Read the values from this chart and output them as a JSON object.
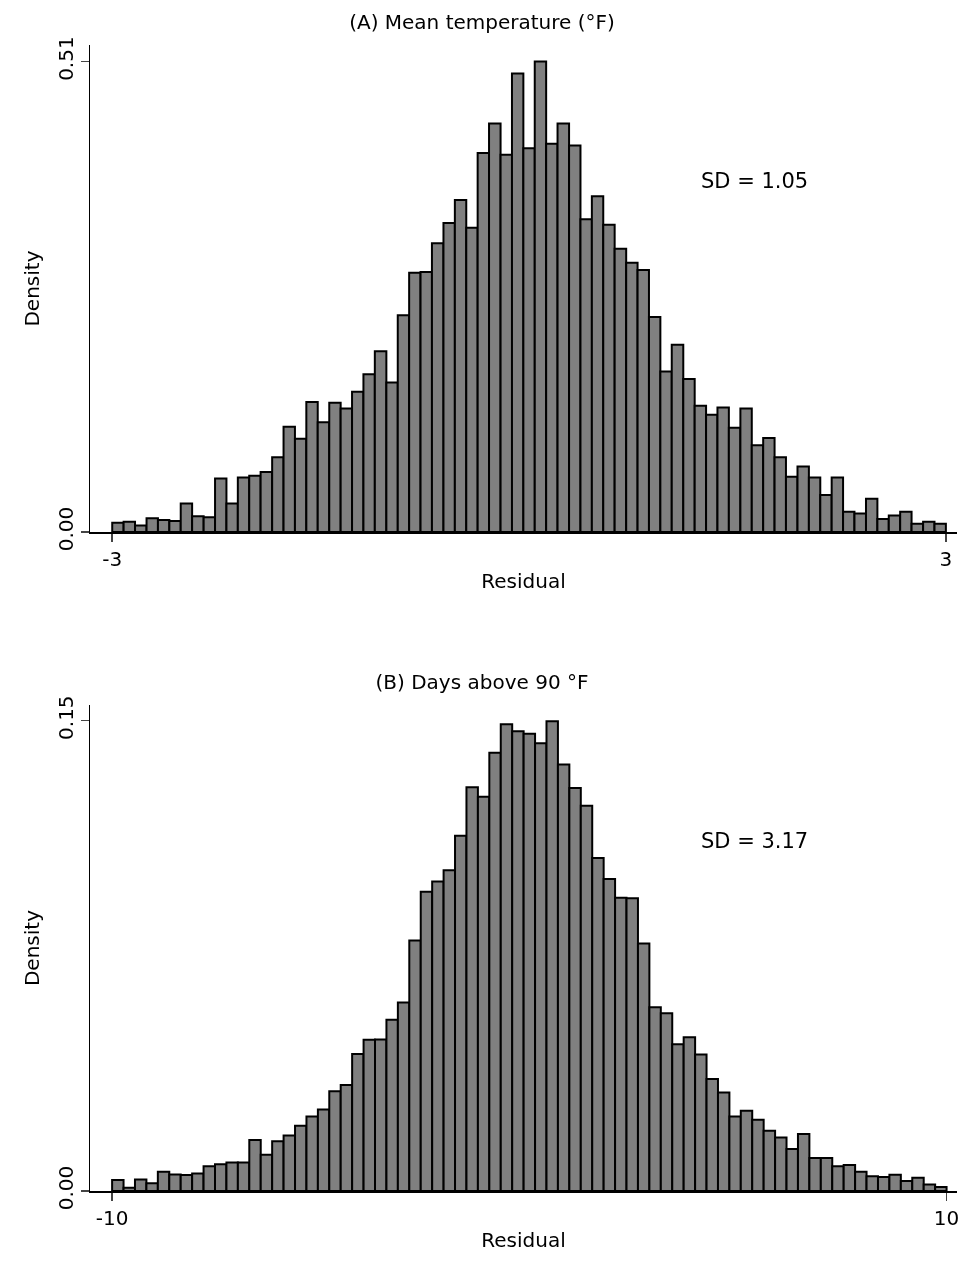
{
  "chart_data": [
    {
      "type": "histogram",
      "title": "(A) Mean temperature (°F)",
      "xlabel": "Residual",
      "ylabel": "Density",
      "color": "#808080",
      "bins": [
        -3,
        -2.918,
        -2.836,
        -2.753,
        -2.671,
        -2.589,
        -2.507,
        -2.425,
        -2.342,
        -2.26,
        -2.178,
        -2.096,
        -2.014,
        -1.932,
        -1.849,
        -1.767,
        -1.685,
        -1.603,
        -1.521,
        -1.438,
        -1.356,
        -1.274,
        -1.192,
        -1.11,
        -1.027,
        -0.945,
        -0.863,
        -0.781,
        -0.699,
        -0.616,
        -0.534,
        -0.452,
        -0.37,
        -0.288,
        -0.205,
        -0.123,
        -0.041,
        0.041,
        0.123,
        0.205,
        0.288,
        0.37,
        0.452,
        0.534,
        0.616,
        0.699,
        0.781,
        0.863,
        0.945,
        1.027,
        1.11,
        1.192,
        1.274,
        1.356,
        1.438,
        1.521,
        1.603,
        1.685,
        1.767,
        1.849,
        1.932,
        2.014,
        2.096,
        2.178,
        2.26,
        2.342,
        2.425,
        2.507,
        2.589,
        2.671,
        2.753,
        2.836,
        2.918,
        3
      ],
      "values": [
        0.01,
        0.011,
        0.007,
        0.015,
        0.013,
        0.012,
        0.031,
        0.017,
        0.016,
        0.058,
        0.031,
        0.059,
        0.061,
        0.065,
        0.081,
        0.114,
        0.101,
        0.141,
        0.119,
        0.14,
        0.134,
        0.152,
        0.171,
        0.196,
        0.162,
        0.235,
        0.281,
        0.282,
        0.313,
        0.335,
        0.36,
        0.33,
        0.411,
        0.443,
        0.409,
        0.497,
        0.416,
        0.51,
        0.421,
        0.443,
        0.419,
        0.339,
        0.364,
        0.333,
        0.307,
        0.292,
        0.284,
        0.233,
        0.174,
        0.203,
        0.166,
        0.137,
        0.127,
        0.135,
        0.113,
        0.134,
        0.094,
        0.102,
        0.081,
        0.06,
        0.071,
        0.059,
        0.04,
        0.059,
        0.022,
        0.02,
        0.036,
        0.014,
        0.018,
        0.022,
        0.009,
        0.011,
        0.009
      ],
      "xlim": [
        -3.16,
        3.08
      ],
      "ylim": [
        0,
        0.528
      ],
      "xticks": [
        -3,
        3
      ],
      "yticks": [
        {
          "value": 0,
          "label": "0.00"
        },
        0.51
      ],
      "annotations": [
        "SD = 1.05"
      ]
    },
    {
      "type": "histogram",
      "title": "(B) Days above 90 °F",
      "xlabel": "Residual",
      "ylabel": "Density",
      "color": "#808080",
      "bins": [
        -10,
        -9.726,
        -9.452,
        -9.178,
        -8.904,
        -8.63,
        -8.356,
        -8.082,
        -7.808,
        -7.534,
        -7.26,
        -6.986,
        -6.712,
        -6.438,
        -6.164,
        -5.89,
        -5.616,
        -5.342,
        -5.068,
        -4.795,
        -4.521,
        -4.247,
        -3.973,
        -3.699,
        -3.425,
        -3.151,
        -2.877,
        -2.603,
        -2.329,
        -2.055,
        -1.781,
        -1.507,
        -1.233,
        -0.959,
        -0.685,
        -0.411,
        -0.137,
        0.137,
        0.411,
        0.685,
        0.959,
        1.233,
        1.507,
        1.781,
        2.055,
        2.329,
        2.603,
        2.877,
        3.151,
        3.425,
        3.699,
        3.973,
        4.247,
        4.521,
        4.795,
        5.068,
        5.342,
        5.616,
        5.89,
        6.164,
        6.438,
        6.712,
        6.986,
        7.26,
        7.534,
        7.808,
        8.082,
        8.356,
        8.63,
        8.904,
        9.178,
        9.452,
        9.726,
        10
      ],
      "values": [
        0.0035,
        0.001,
        0.0037,
        0.0025,
        0.0061,
        0.0053,
        0.0051,
        0.0056,
        0.0079,
        0.0085,
        0.0091,
        0.0091,
        0.0163,
        0.0116,
        0.0159,
        0.0177,
        0.0208,
        0.0238,
        0.026,
        0.0318,
        0.0338,
        0.0437,
        0.0482,
        0.0483,
        0.0546,
        0.0601,
        0.0799,
        0.0954,
        0.0987,
        0.1023,
        0.1133,
        0.1288,
        0.1257,
        0.1398,
        0.1489,
        0.1466,
        0.1458,
        0.1428,
        0.1498,
        0.136,
        0.1285,
        0.1229,
        0.1062,
        0.0995,
        0.0935,
        0.0934,
        0.0789,
        0.0586,
        0.0567,
        0.0468,
        0.049,
        0.0435,
        0.0357,
        0.0314,
        0.0238,
        0.0256,
        0.0227,
        0.0192,
        0.0171,
        0.0134,
        0.0182,
        0.0105,
        0.0105,
        0.0079,
        0.0083,
        0.0061,
        0.0047,
        0.0045,
        0.0052,
        0.0032,
        0.0042,
        0.0021,
        0.0013
      ],
      "xlim": [
        -10.53,
        10.25
      ],
      "ylim": [
        0,
        0.155
      ],
      "xticks": [
        -10,
        10
      ],
      "yticks": [
        {
          "value": 0,
          "label": "0.00"
        },
        0.15
      ],
      "annotations": [
        "SD = 3.17"
      ]
    }
  ]
}
